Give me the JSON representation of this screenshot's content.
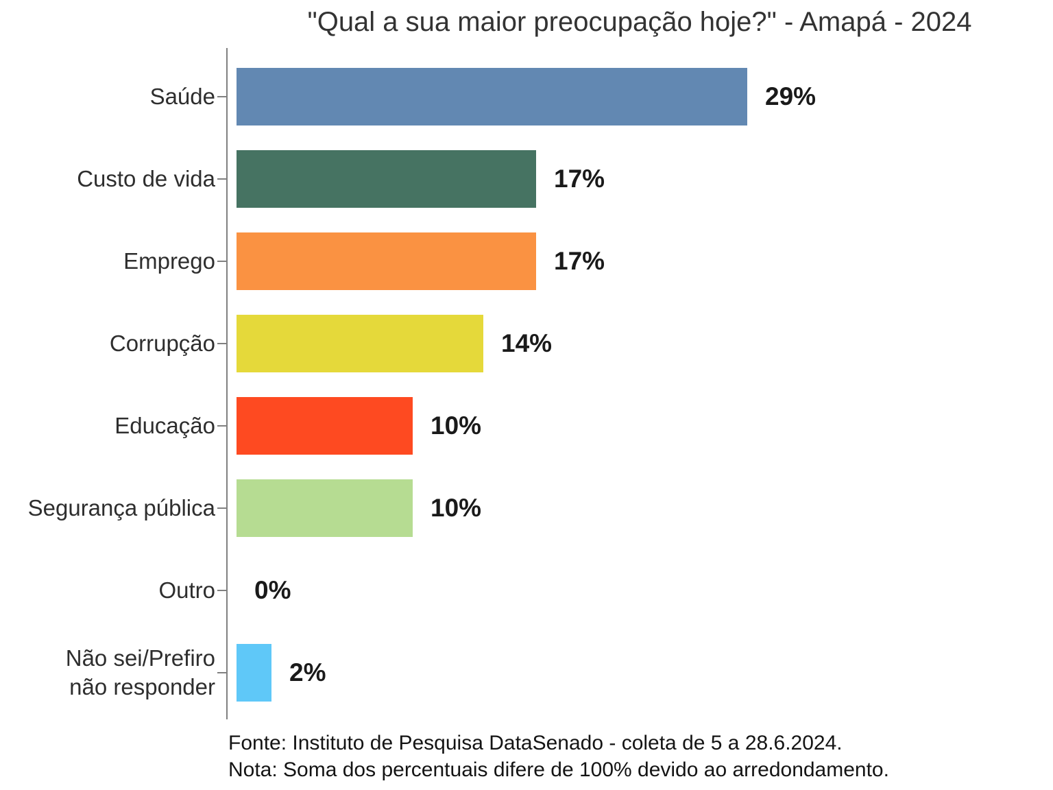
{
  "title": "\"Qual a sua maior preocupação hoje?\" - Amapá - 2024",
  "footer": {
    "line1": "Fonte: Instituto de Pesquisa DataSenado - coleta de 5 a 28.6.2024.",
    "line2": "Nota: Soma dos percentuais difere de 100% devido ao arredondamento."
  },
  "chart_data": {
    "type": "bar",
    "orientation": "horizontal",
    "title": "\"Qual a sua maior preocupação hoje?\" - Amapá - 2024",
    "categories": [
      "Saúde",
      "Custo de vida",
      "Emprego",
      "Corrupção",
      "Educação",
      "Segurança pública",
      "Outro",
      "Não sei/Prefiro\nnão responder"
    ],
    "values": [
      29,
      17,
      17,
      14,
      10,
      10,
      0,
      2
    ],
    "value_labels": [
      "29%",
      "17%",
      "17%",
      "14%",
      "10%",
      "10%",
      "0%",
      "2%"
    ],
    "bar_colors": [
      "#6288b2",
      "#467362",
      "#fa9242",
      "#e5d93a",
      "#fe4a21",
      "#b6dc92",
      null,
      "#5fc8f8"
    ],
    "xlim": [
      0,
      29
    ],
    "xlabel": "",
    "ylabel": "",
    "grid": false,
    "legend": false,
    "axis_color": "#808080",
    "label_color": "#2e2e2e",
    "value_label_color": "#1a1a1a"
  }
}
